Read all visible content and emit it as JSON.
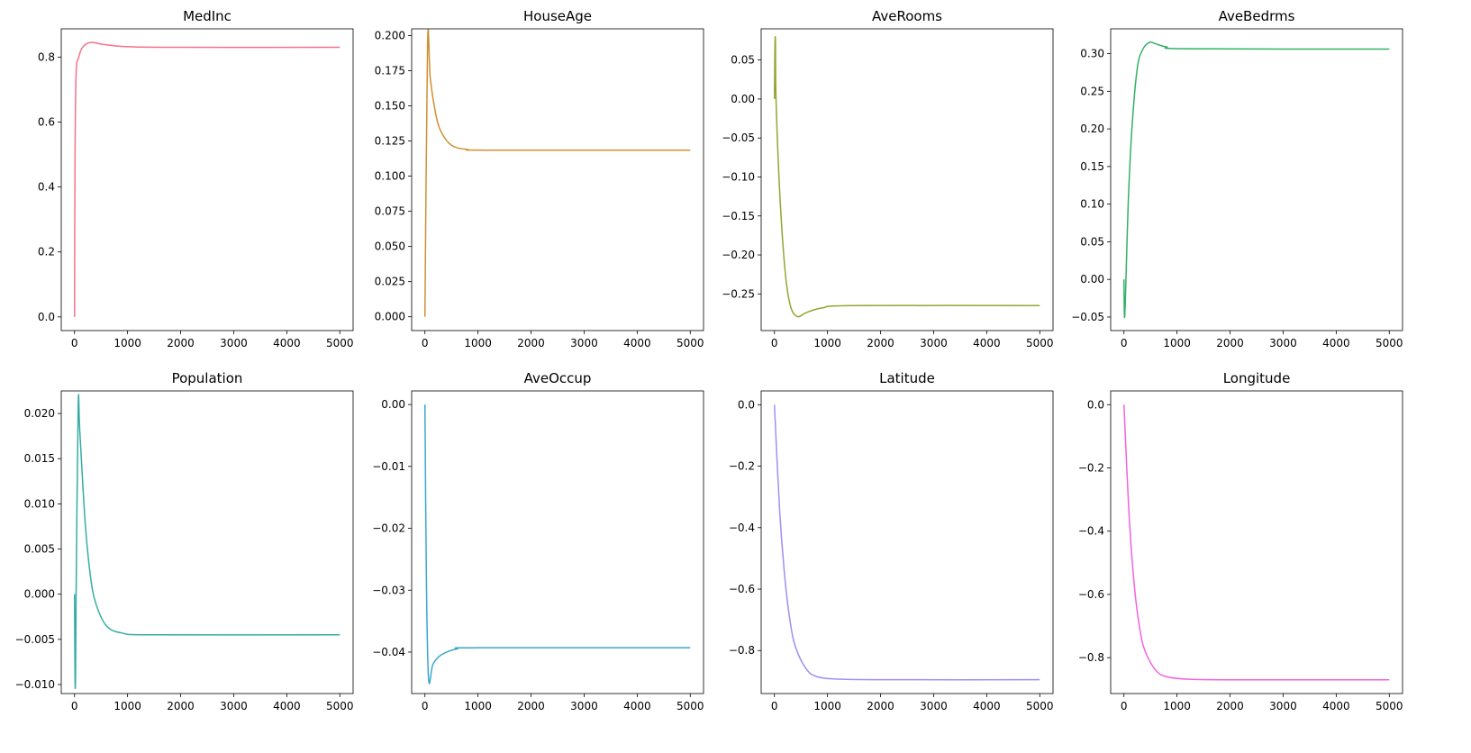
{
  "chart_data": [
    {
      "type": "line",
      "title": "MedInc",
      "color": "#f77189",
      "xlim": [
        -250,
        5250
      ],
      "ylim": [
        -0.042,
        0.887
      ],
      "xticks": [
        0,
        1000,
        2000,
        3000,
        4000,
        5000
      ],
      "yticks": [
        0.0,
        0.2,
        0.4,
        0.6,
        0.8
      ],
      "ytick_labels": [
        "0.0",
        "0.2",
        "0.4",
        "0.6",
        "0.8"
      ],
      "x": [
        0,
        10,
        30,
        80,
        150,
        300,
        500,
        800,
        1200,
        2000,
        5000
      ],
      "y": [
        0,
        0.5,
        0.75,
        0.8,
        0.83,
        0.845,
        0.84,
        0.834,
        0.831,
        0.83,
        0.83
      ]
    },
    {
      "type": "line",
      "title": "HouseAge",
      "color": "#ce9032",
      "xlim": [
        -250,
        5250
      ],
      "ylim": [
        -0.0098,
        0.2048
      ],
      "xticks": [
        0,
        1000,
        2000,
        3000,
        4000,
        5000
      ],
      "yticks": [
        0,
        0.025,
        0.05,
        0.075,
        0.1,
        0.125,
        0.15,
        0.175,
        0.2
      ],
      "ytick_labels": [
        "0.000",
        "0.025",
        "0.050",
        "0.075",
        "0.100",
        "0.125",
        "0.150",
        "0.175",
        "0.200"
      ],
      "x": [
        0,
        50,
        100,
        200,
        300,
        500,
        800,
        1200,
        5000
      ],
      "y": [
        0,
        0.195,
        0.17,
        0.145,
        0.132,
        0.122,
        0.119,
        0.1185,
        0.1185
      ]
    },
    {
      "type": "line",
      "title": "AveRooms",
      "color": "#97a431",
      "xlim": [
        -250,
        5250
      ],
      "ylim": [
        -0.297,
        0.09
      ],
      "xticks": [
        0,
        1000,
        2000,
        3000,
        4000,
        5000
      ],
      "yticks": [
        0.05,
        0.0,
        -0.05,
        -0.1,
        -0.15,
        -0.2,
        -0.25
      ],
      "ytick_labels": [
        "0.05",
        "0.00",
        "−0.05",
        "−0.10",
        "−0.15",
        "−0.20",
        "−0.25"
      ],
      "x": [
        0,
        10,
        20,
        30,
        100,
        200,
        300,
        430,
        600,
        900,
        1500,
        5000
      ],
      "y": [
        0,
        0.072,
        0.07,
        0.0,
        -0.12,
        -0.22,
        -0.265,
        -0.279,
        -0.274,
        -0.268,
        -0.265,
        -0.265
      ]
    },
    {
      "type": "line",
      "title": "AveBedrms",
      "color": "#32b166",
      "xlim": [
        -250,
        5250
      ],
      "ylim": [
        -0.068,
        0.333
      ],
      "xticks": [
        0,
        1000,
        2000,
        3000,
        4000,
        5000
      ],
      "yticks": [
        -0.05,
        0.0,
        0.05,
        0.1,
        0.15,
        0.2,
        0.25,
        0.3
      ],
      "ytick_labels": [
        "−0.05",
        "0.00",
        "0.05",
        "0.10",
        "0.15",
        "0.20",
        "0.25",
        "0.30"
      ],
      "x": [
        0,
        10,
        30,
        80,
        150,
        250,
        350,
        480,
        600,
        800,
        1200,
        5000
      ],
      "y": [
        0,
        -0.05,
        -0.02,
        0.1,
        0.2,
        0.28,
        0.305,
        0.315,
        0.313,
        0.309,
        0.3065,
        0.306
      ]
    },
    {
      "type": "line",
      "title": "Population",
      "color": "#36ada4",
      "xlim": [
        -250,
        5250
      ],
      "ylim": [
        -0.011,
        0.0225
      ],
      "xticks": [
        0,
        1000,
        2000,
        3000,
        4000,
        5000
      ],
      "yticks": [
        -0.01,
        -0.005,
        0.0,
        0.005,
        0.01,
        0.015,
        0.02
      ],
      "ytick_labels": [
        "−0.010",
        "−0.005",
        "0.000",
        "0.005",
        "0.010",
        "0.015",
        "0.020"
      ],
      "x": [
        0,
        10,
        20,
        30,
        70,
        100,
        200,
        300,
        400,
        600,
        900,
        1500,
        5000
      ],
      "y": [
        0,
        -0.0095,
        -0.009,
        0.0,
        0.021,
        0.018,
        0.008,
        0.002,
        -0.001,
        -0.0035,
        -0.0043,
        -0.0045,
        -0.0045
      ]
    },
    {
      "type": "line",
      "title": "AveOccup",
      "color": "#39a7d0",
      "xlim": [
        -250,
        5250
      ],
      "ylim": [
        -0.0467,
        0.0022
      ],
      "xticks": [
        0,
        1000,
        2000,
        3000,
        4000,
        5000
      ],
      "yticks": [
        0.0,
        -0.01,
        -0.02,
        -0.03,
        -0.04
      ],
      "ytick_labels": [
        "0.00",
        "−0.01",
        "−0.02",
        "−0.03",
        "−0.04"
      ],
      "x": [
        0,
        30,
        70,
        150,
        300,
        600,
        1000,
        5000
      ],
      "y": [
        0,
        -0.03,
        -0.0445,
        -0.042,
        -0.0405,
        -0.0395,
        -0.0393,
        -0.0393
      ]
    },
    {
      "type": "line",
      "title": "Latitude",
      "color": "#a48cf4",
      "xlim": [
        -250,
        5250
      ],
      "ylim": [
        -0.94,
        0.045
      ],
      "xticks": [
        0,
        1000,
        2000,
        3000,
        4000,
        5000
      ],
      "yticks": [
        0.0,
        -0.2,
        -0.4,
        -0.6,
        -0.8
      ],
      "ytick_labels": [
        "0.0",
        "−0.2",
        "−0.4",
        "−0.6",
        "−0.8"
      ],
      "x": [
        0,
        100,
        200,
        300,
        400,
        600,
        800,
        1200,
        2000,
        5000
      ],
      "y": [
        0,
        -0.35,
        -0.57,
        -0.71,
        -0.79,
        -0.86,
        -0.885,
        -0.893,
        -0.895,
        -0.895
      ]
    },
    {
      "type": "line",
      "title": "Longitude",
      "color": "#f561dd",
      "xlim": [
        -250,
        5250
      ],
      "ylim": [
        -0.9135,
        0.0435
      ],
      "xticks": [
        0,
        1000,
        2000,
        3000,
        4000,
        5000
      ],
      "yticks": [
        0.0,
        -0.2,
        -0.4,
        -0.6,
        -0.8
      ],
      "ytick_labels": [
        "0.0",
        "−0.2",
        "−0.4",
        "−0.6",
        "−0.8"
      ],
      "x": [
        0,
        100,
        200,
        300,
        400,
        600,
        800,
        1200,
        2000,
        5000
      ],
      "y": [
        0,
        -0.36,
        -0.58,
        -0.71,
        -0.78,
        -0.84,
        -0.86,
        -0.868,
        -0.87,
        -0.87
      ]
    }
  ]
}
